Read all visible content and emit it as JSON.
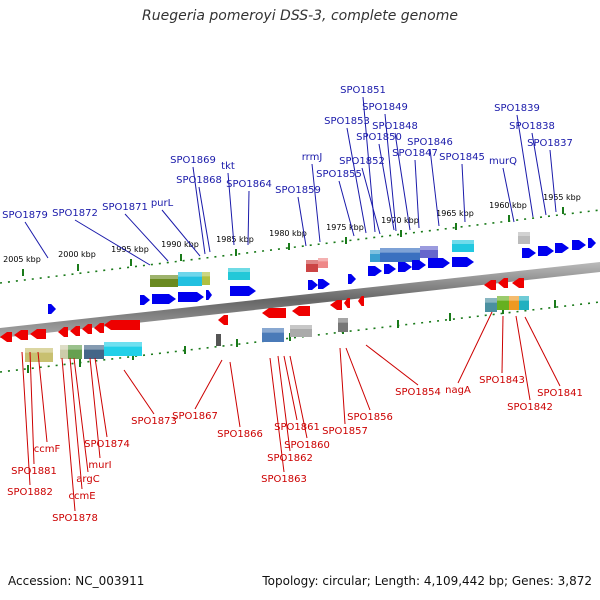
{
  "title": "Ruegeria pomeroyi DSS-3, complete genome",
  "footer": {
    "accession": "Accession: NC_003911",
    "summary": "Topology: circular; Length: 4,109,442 bp; Genes: 3,872"
  },
  "colors": {
    "forward_gene": "#0000ee",
    "reverse_gene": "#ee0000",
    "forward_label": "#1a1aaa",
    "reverse_label": "#cc0000",
    "tick": "#1a7a1a",
    "backbone": "#777777"
  },
  "ruler": {
    "unit": "kbp",
    "ticks": [
      "2005 kbp",
      "2000 kbp",
      "1995 kbp",
      "1990 kbp",
      "1985 kbp",
      "1980 kbp",
      "1975 kbp",
      "1970 kbp",
      "1965 kbp",
      "1960 kbp",
      "1955 kbp"
    ]
  },
  "forward_labels": [
    "SPO1879",
    "SPO1872",
    "SPO1871",
    "purL",
    "SPO1869",
    "SPO1868",
    "tkt",
    "SPO1864",
    "SPO1859",
    "rrmJ",
    "SPO1855",
    "SPO1853",
    "SPO1852",
    "SPO1851",
    "SPO1849",
    "SPO1850",
    "SPO1848",
    "SPO1847",
    "SPO1846",
    "SPO1845",
    "murQ",
    "SPO1839",
    "SPO1838",
    "SPO1837"
  ],
  "reverse_labels": [
    "SPO1882",
    "SPO1881",
    "ccmF",
    "SPO1878",
    "ccmE",
    "argC",
    "murI",
    "SPO1874",
    "SPO1873",
    "SPO1867",
    "SPO1866",
    "SPO1863",
    "SPO1862",
    "SPO1861",
    "SPO1860",
    "SPO1857",
    "SPO1856",
    "SPO1854",
    "nagA",
    "SPO1843",
    "SPO1842",
    "SPO1841"
  ]
}
